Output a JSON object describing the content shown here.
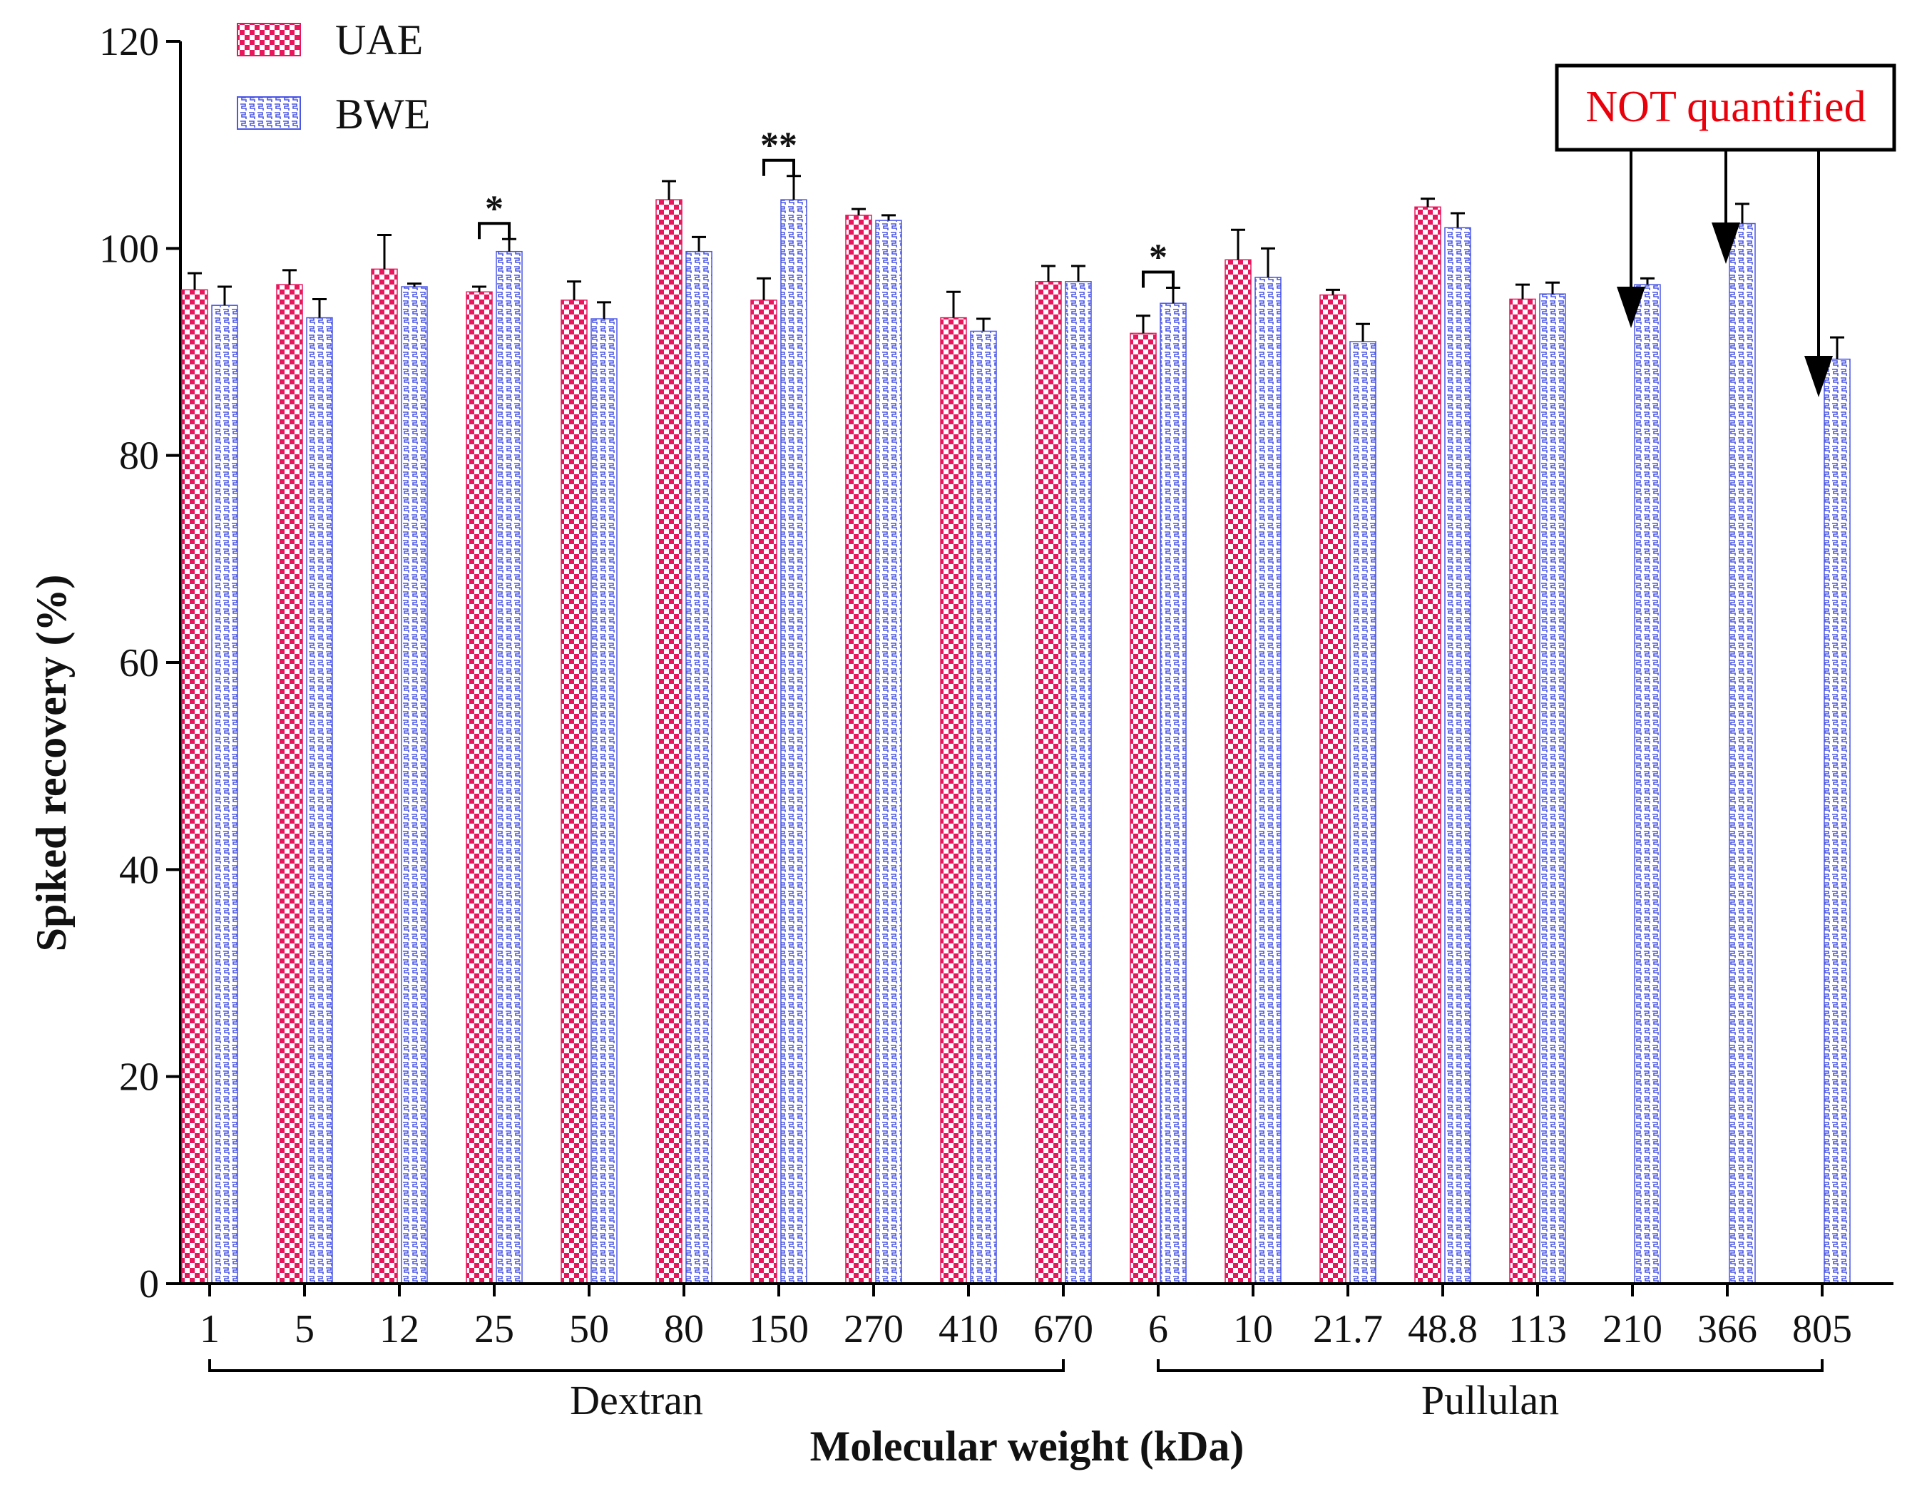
{
  "chart_data": {
    "type": "bar",
    "xlabel": "Molecular weight (kDa)",
    "ylabel": "Spiked recovery (%)",
    "ylim": [
      0,
      120
    ],
    "yticks": [
      0,
      20,
      40,
      60,
      80,
      100,
      120
    ],
    "categories": [
      "1",
      "5",
      "12",
      "25",
      "50",
      "80",
      "150",
      "270",
      "410",
      "670",
      "6",
      "10",
      "21.7",
      "48.8",
      "113",
      "210",
      "366",
      "805"
    ],
    "groups": [
      {
        "label": "Dextran",
        "from": 0,
        "to": 9
      },
      {
        "label": "Pullulan",
        "from": 10,
        "to": 17
      }
    ],
    "series": [
      {
        "name": "UAE",
        "color": "#e8175d",
        "values": [
          96.0,
          96.5,
          98.0,
          95.8,
          95.0,
          104.7,
          95.0,
          103.2,
          93.3,
          96.8,
          91.8,
          98.9,
          95.5,
          104.0,
          95.1,
          null,
          null,
          null
        ],
        "errors": [
          1.6,
          1.4,
          3.3,
          0.5,
          1.8,
          1.8,
          2.1,
          0.6,
          2.5,
          1.5,
          1.7,
          2.9,
          0.5,
          0.8,
          1.4,
          null,
          null,
          null
        ]
      },
      {
        "name": "BWE",
        "color": "#4a56e6",
        "values": [
          94.5,
          93.3,
          96.3,
          99.7,
          93.2,
          99.7,
          104.7,
          102.7,
          92.0,
          96.8,
          94.7,
          97.2,
          91.0,
          102.0,
          95.6,
          96.5,
          102.4,
          89.3
        ],
        "errors": [
          1.8,
          1.8,
          0.3,
          1.2,
          1.6,
          1.4,
          2.3,
          0.5,
          1.2,
          1.5,
          1.5,
          2.8,
          1.7,
          1.4,
          1.1,
          0.6,
          1.9,
          2.1
        ]
      }
    ],
    "significance": [
      {
        "category_index": 3,
        "label": "*"
      },
      {
        "category_index": 6,
        "label": "**"
      },
      {
        "category_index": 10,
        "label": "*"
      }
    ],
    "annotation": {
      "text": "NOT quantified",
      "color": "#e8000b",
      "arrow_targets": [
        15,
        16,
        17
      ]
    }
  }
}
